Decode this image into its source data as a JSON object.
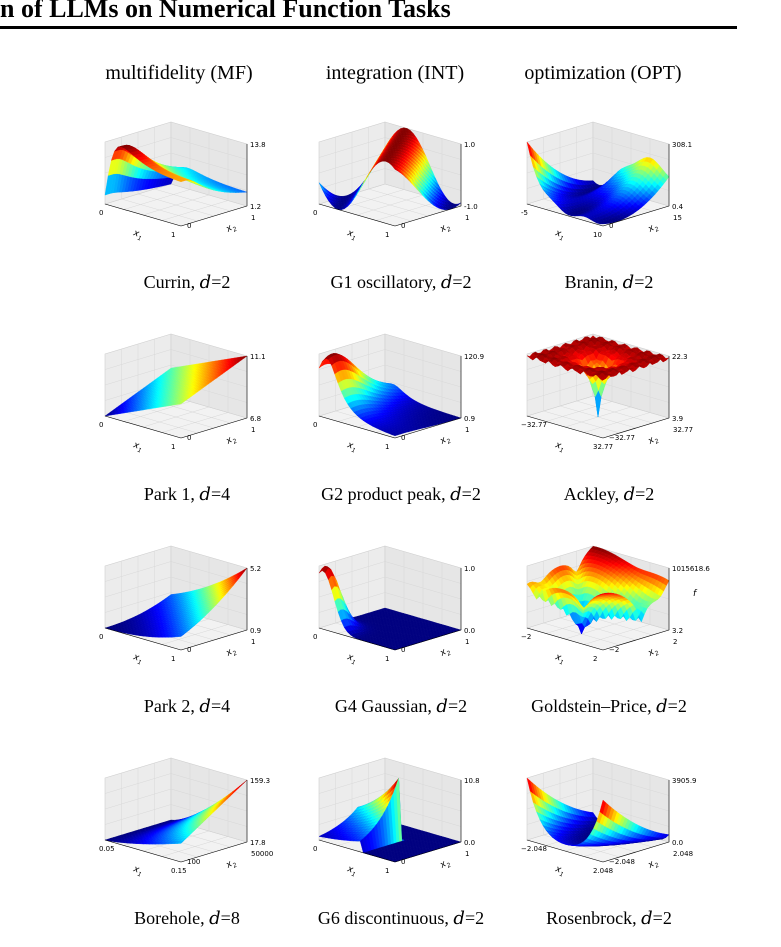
{
  "header": {
    "title": "n of LLMs on Numerical Function Tasks",
    "columns": [
      "multifidelity (MF)",
      "integration (INT)",
      "optimization (OPT)"
    ]
  },
  "colors": {
    "surface_colormap": "jet",
    "pane": "#ececec",
    "grid": "#cfcfcf"
  },
  "panels": [
    {
      "name": "Currin",
      "d": "2",
      "func": "currin",
      "top": "13.8",
      "bottom": "1.2",
      "x1min": "0",
      "x1max": "1",
      "x2min": "0",
      "x2max": "1",
      "xlabel": "x1",
      "ylabel": "x2",
      "zlabel": ""
    },
    {
      "name": "G1 oscillatory",
      "d": "2",
      "func": "osc",
      "top": "1.0",
      "bottom": "-1.0",
      "x1min": "0",
      "x1max": "1",
      "x2min": "0",
      "x2max": "1",
      "xlabel": "x1",
      "ylabel": "x2",
      "zlabel": ""
    },
    {
      "name": "Branin",
      "d": "2",
      "func": "branin",
      "top": "308.1",
      "bottom": "0.4",
      "x1min": "-5",
      "x1max": "10",
      "x2min": "0",
      "x2max": "15",
      "xlabel": "x1",
      "ylabel": "x2",
      "zlabel": ""
    },
    {
      "name": "Park 1",
      "d": "4",
      "func": "park1",
      "top": "11.1",
      "bottom": "6.8",
      "x1min": "0",
      "x1max": "1",
      "x2min": "0",
      "x2max": "1",
      "xlabel": "x1",
      "ylabel": "x2",
      "zlabel": ""
    },
    {
      "name": "G2 product peak",
      "d": "2",
      "func": "peak",
      "top": "120.9",
      "bottom": "0.9",
      "x1min": "0",
      "x1max": "1",
      "x2min": "0",
      "x2max": "1",
      "xlabel": "x1",
      "ylabel": "x2",
      "zlabel": ""
    },
    {
      "name": "Ackley",
      "d": "2",
      "func": "ackley",
      "top": "22.3",
      "bottom": "3.9",
      "x1min": "−32.77",
      "x1max": "32.77",
      "x2min": "−32.77",
      "x2max": "32.77",
      "xlabel": "x1",
      "ylabel": "x2",
      "zlabel": ""
    },
    {
      "name": "Park 2",
      "d": "4",
      "func": "park2",
      "top": "5.2",
      "bottom": "0.9",
      "x1min": "0",
      "x1max": "1",
      "x2min": "0",
      "x2max": "1",
      "xlabel": "x1",
      "ylabel": "x2",
      "zlabel": ""
    },
    {
      "name": "G4 Gaussian",
      "d": "2",
      "func": "gauss",
      "top": "1.0",
      "bottom": "0.0",
      "x1min": "0",
      "x1max": "1",
      "x2min": "0",
      "x2max": "1",
      "xlabel": "x1",
      "ylabel": "x2",
      "zlabel": ""
    },
    {
      "name": "Goldstein–Price",
      "d": "2",
      "func": "gp",
      "top": "1015618.6",
      "bottom": "3.2",
      "x1min": "−2",
      "x1max": "2",
      "x2min": "−2",
      "x2max": "2",
      "xlabel": "x1",
      "ylabel": "x2",
      "zlabel": "f"
    },
    {
      "name": "Borehole",
      "d": "8",
      "func": "borehole",
      "top": "159.3",
      "bottom": "17.8",
      "x1min": "0.05",
      "x1max": "0.15",
      "x2min": "100",
      "x2max": "50000",
      "xlabel": "x1",
      "ylabel": "x2",
      "zlabel": ""
    },
    {
      "name": "G6 discontinuous",
      "d": "2",
      "func": "disc",
      "top": "10.8",
      "bottom": "0.0",
      "x1min": "0",
      "x1max": "1",
      "x2min": "0",
      "x2max": "1",
      "xlabel": "x1",
      "ylabel": "x2",
      "zlabel": ""
    },
    {
      "name": "Rosenbrock",
      "d": "2",
      "func": "rosen",
      "top": "3905.9",
      "bottom": "0.0",
      "x1min": "−2.048",
      "x1max": "2.048",
      "x2min": "−2.048",
      "x2max": "2.048",
      "xlabel": "x1",
      "ylabel": "x2",
      "zlabel": ""
    }
  ]
}
